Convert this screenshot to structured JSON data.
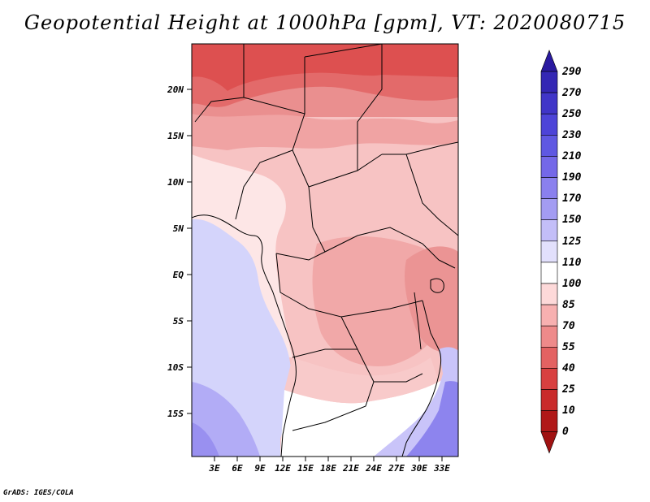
{
  "title": "Geopotential Height at 1000hPa [gpm], VT: 2020080715",
  "map": {
    "lat_labels": [
      "20N",
      "15N",
      "10N",
      "5N",
      "EQ",
      "5S",
      "10S",
      "15S"
    ],
    "lon_labels": [
      "3E",
      "6E",
      "9E",
      "12E",
      "15E",
      "18E",
      "21E",
      "24E",
      "27E",
      "30E",
      "33E"
    ]
  },
  "colorbar": {
    "levels": [
      "290",
      "270",
      "250",
      "230",
      "210",
      "190",
      "170",
      "150",
      "125",
      "110",
      "100",
      "85",
      "70",
      "55",
      "40",
      "25",
      "10",
      "0"
    ],
    "colors": [
      "#2a1aa0",
      "#3427b4",
      "#4035c8",
      "#4d44d8",
      "#5f58e2",
      "#7468e8",
      "#8a80ee",
      "#a39cf2",
      "#c3bef8",
      "#e2e0fc",
      "#ffffff",
      "#fdd9d9",
      "#f7b0b0",
      "#ee8a8a",
      "#e36262",
      "#d84040",
      "#c92a2a",
      "#b01818",
      "#a01212"
    ]
  },
  "credit": "GrADS: IGES/COLA"
}
